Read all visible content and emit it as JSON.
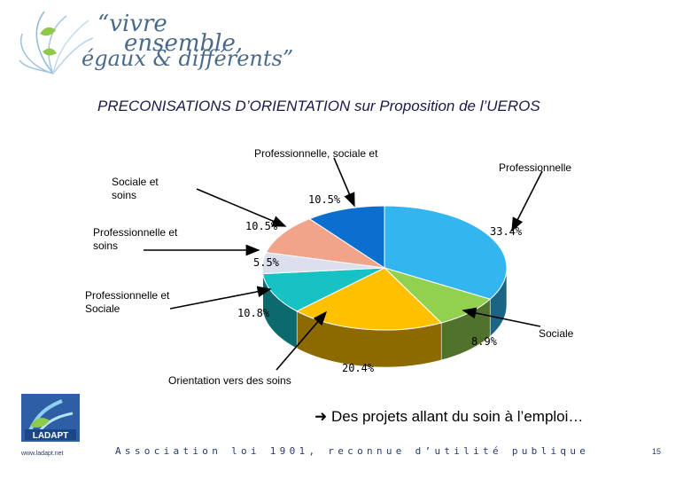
{
  "header": {
    "slogan_line1": "“vivre",
    "slogan_line2": "ensemble,",
    "slogan_line3": "égaux & différents”"
  },
  "title": "PRECONISATIONS D’ORIENTATION sur Proposition de l’UEROS",
  "chart_data": {
    "type": "pie",
    "title": "PRECONISATIONS D’ORIENTATION sur Proposition de l’UEROS",
    "categories": [
      "Professionnelle",
      "Sociale",
      "Orientation vers des soins",
      "Professionnelle et Sociale",
      "Professionnelle et soins",
      "Sociale et soins",
      "Professionnelle, sociale et"
    ],
    "values": [
      33.4,
      8.9,
      20.4,
      10.8,
      5.5,
      10.5,
      10.5
    ],
    "value_labels": [
      "33.4%",
      "8.9%",
      "20.4%",
      "10.8%",
      "5.5%",
      "10.5%",
      "10.5%"
    ],
    "colors": [
      "#33b5ef",
      "#92d050",
      "#ffc000",
      "#17c1c4",
      "#dcdfee",
      "#f2a48a",
      "#0a6fcf"
    ],
    "three_d": true
  },
  "conclusion": {
    "arrow_icon": "right-arrow-icon",
    "text": "Des projets allant du soin à l’emploi…"
  },
  "footer": {
    "association": "Association loi 1901, reconnue d’utilité publique",
    "url": "www.ladapt.net",
    "logo_text": "LADAPT",
    "page_number": "15"
  }
}
